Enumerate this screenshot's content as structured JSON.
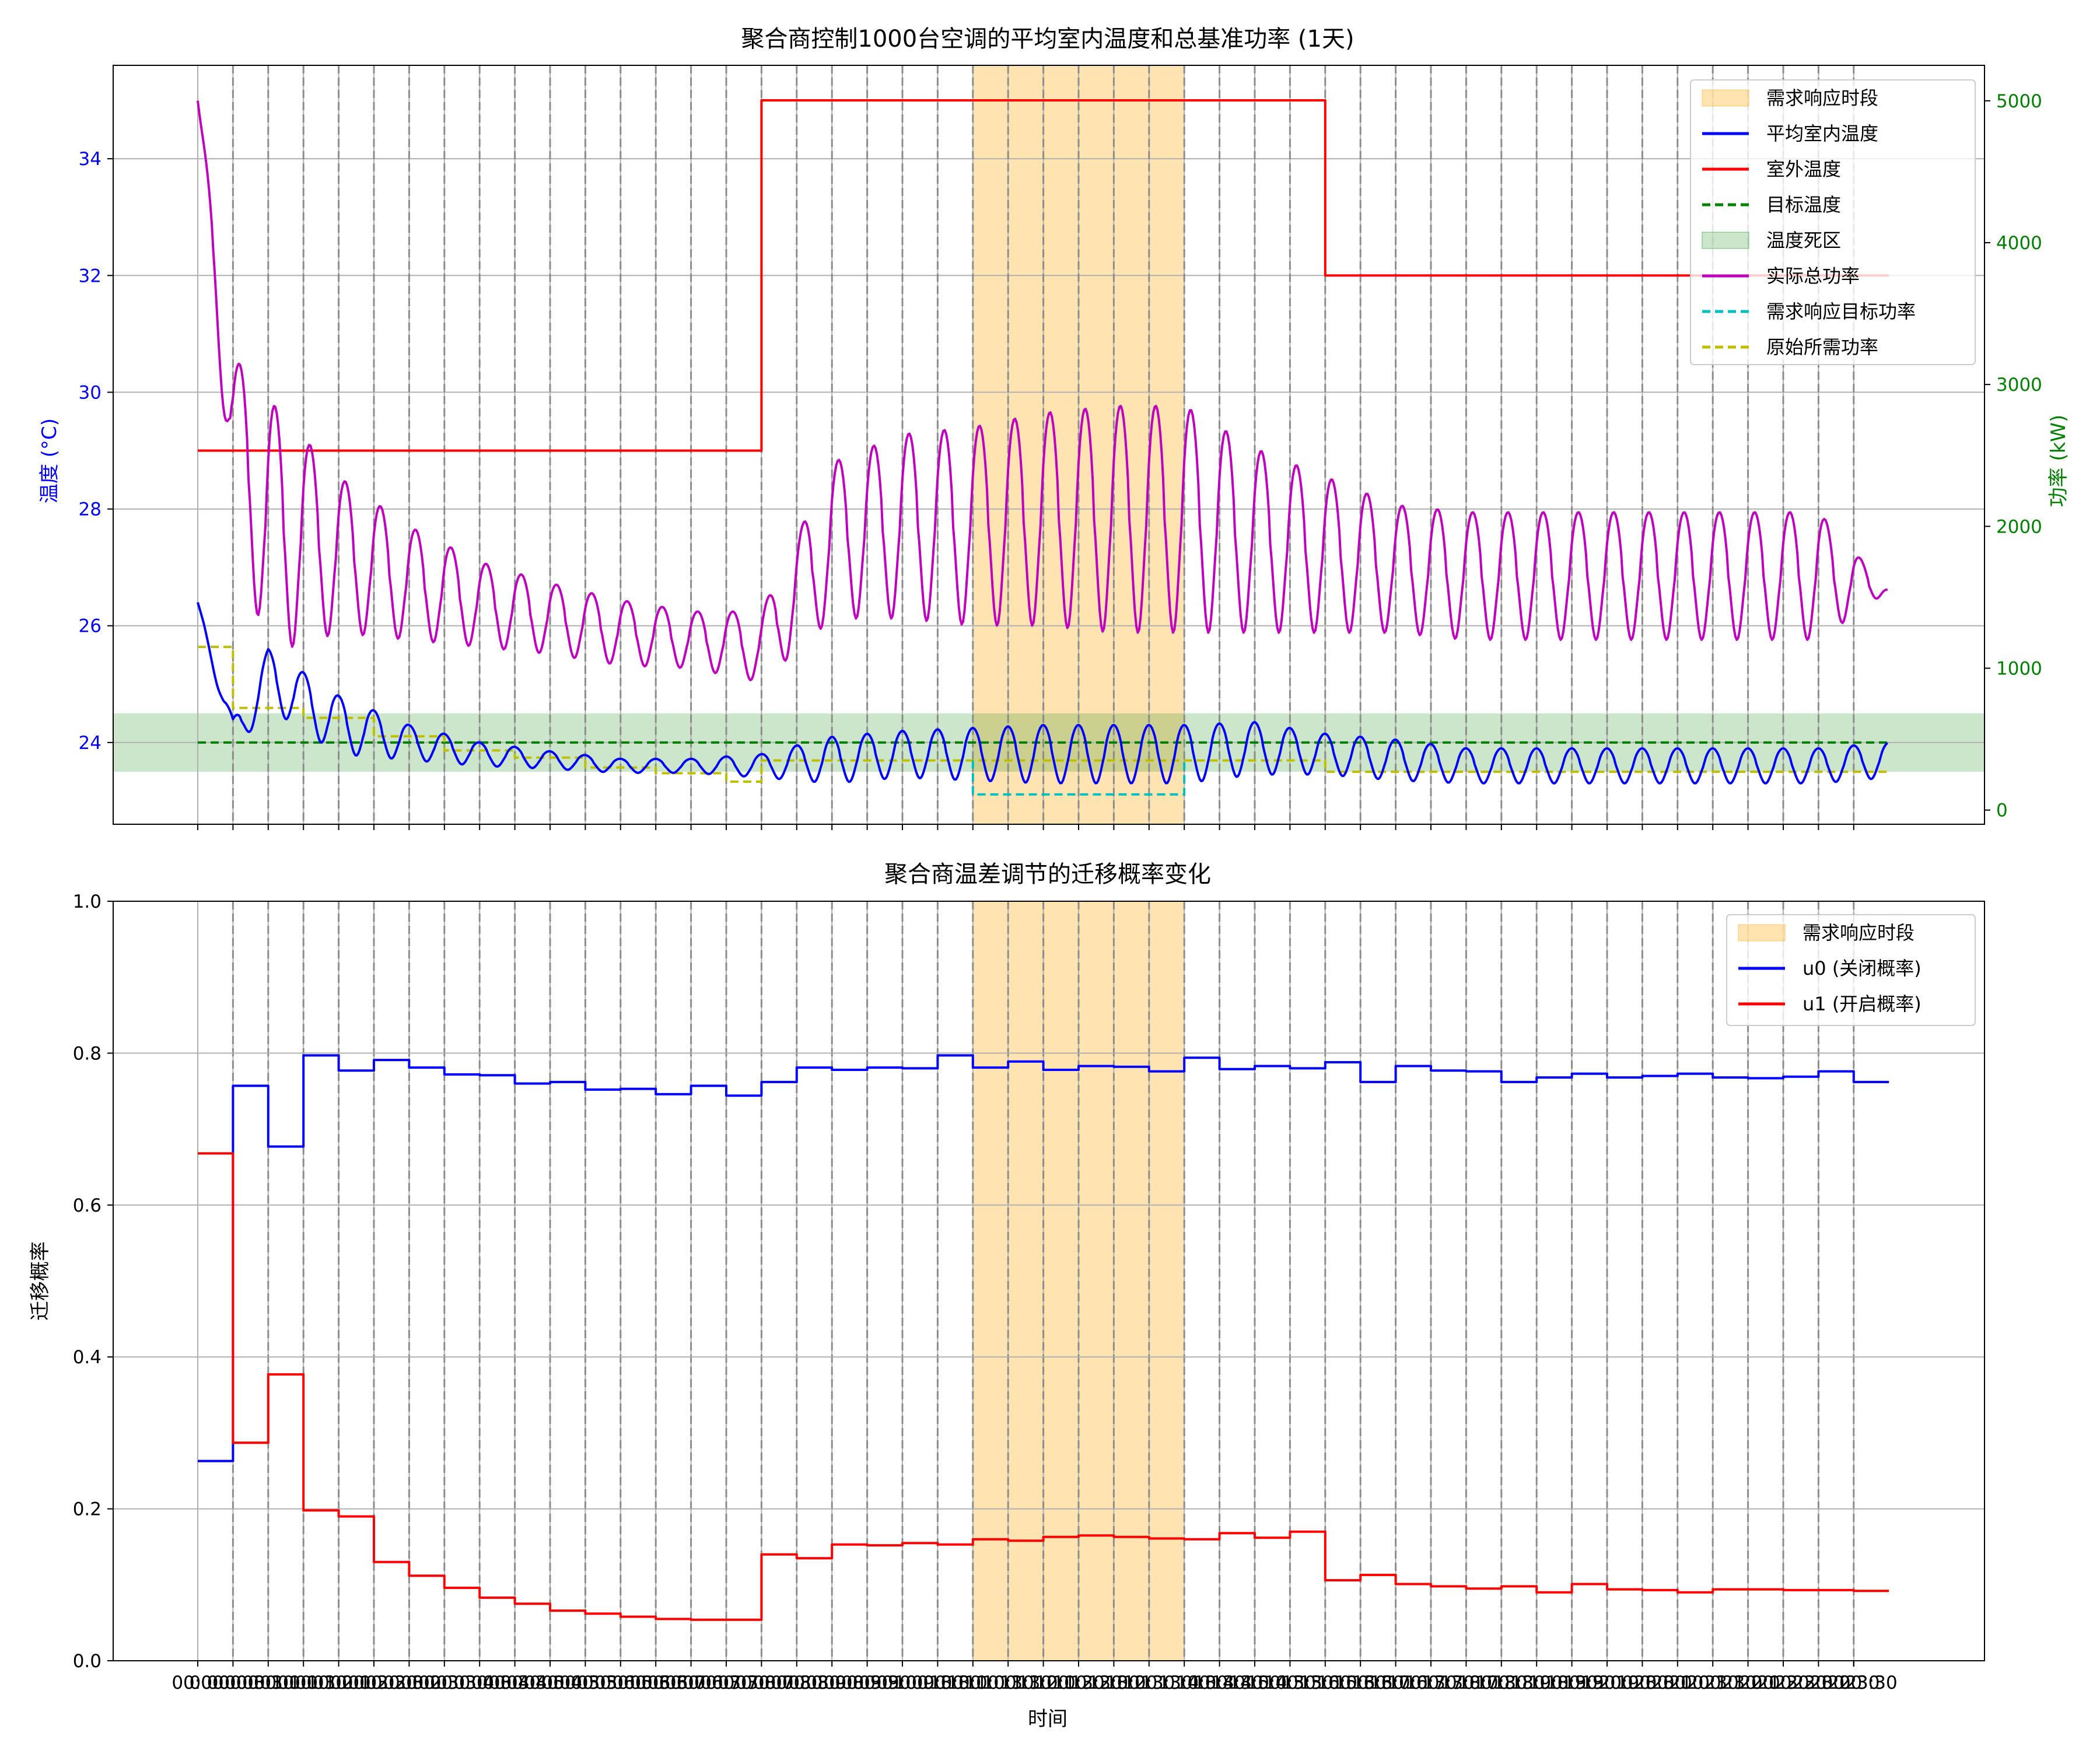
{
  "chart_data": [
    {
      "type": "line",
      "title": "聚合商控制1000台空调的平均室内温度和总基准功率 (1天)",
      "xlabel": "",
      "ylabel": "温度 (°C)",
      "ylabel_right": "功率 (kW)",
      "ylim": [
        22.6,
        35.6
      ],
      "ylim_right": [
        -100,
        5250
      ],
      "yticks": [
        24,
        26,
        28,
        30,
        32,
        34
      ],
      "yticks_right": [
        0,
        1000,
        2000,
        3000,
        4000,
        5000
      ],
      "grid": true,
      "legend_position": "upper right",
      "legend": [
        "需求响应时段",
        "平均室内温度",
        "室外温度",
        "目标温度",
        "温度死区",
        "实际总功率",
        "需求响应目标功率",
        "原始所需功率"
      ],
      "dr_period": [
        11,
        14
      ],
      "deadband": [
        23.5,
        24.5
      ],
      "target_temp": 24,
      "series": [
        {
          "name": "室外温度",
          "axis": "left",
          "color": "#ff0000",
          "style": "solid",
          "x": [
            0,
            8,
            8,
            16,
            16,
            24
          ],
          "y": [
            29,
            29,
            35,
            35,
            32,
            32
          ]
        },
        {
          "name": "平均室内温度",
          "axis": "left",
          "color": "#0000ff",
          "style": "solid",
          "x": [
            0,
            0.5,
            1,
            2,
            3,
            4,
            5,
            6,
            7,
            8,
            9,
            10,
            11,
            12,
            13,
            14,
            15,
            16,
            17,
            18,
            19,
            20,
            21,
            22,
            23,
            24
          ],
          "mean": [
            26.4,
            24.1,
            25.1,
            24.3,
            24.0,
            23.8,
            23.7,
            23.6,
            23.6,
            23.6,
            23.7,
            23.8,
            23.8,
            23.8,
            23.8,
            23.8,
            23.9,
            23.8,
            23.7,
            23.6,
            23.6,
            23.6,
            23.6,
            23.6,
            23.6,
            23.7
          ],
          "amp": [
            0,
            0.3,
            0.5,
            0.5,
            0.3,
            0.2,
            0.15,
            0.12,
            0.12,
            0.2,
            0.4,
            0.4,
            0.45,
            0.5,
            0.5,
            0.5,
            0.45,
            0.35,
            0.35,
            0.3,
            0.3,
            0.3,
            0.3,
            0.3,
            0.3,
            0.3
          ]
        },
        {
          "name": "目标温度",
          "axis": "left",
          "color": "#008000",
          "style": "dashed",
          "x": [
            0,
            24
          ],
          "y": [
            24,
            24
          ]
        },
        {
          "name": "实际总功率",
          "axis": "right",
          "color": "#bf00bf",
          "style": "solid",
          "x": [
            0,
            0.5,
            1,
            2,
            3,
            4,
            5,
            6,
            7,
            8,
            9,
            10,
            11,
            12,
            13,
            14,
            15,
            16,
            17,
            18,
            19,
            20,
            21,
            22,
            23,
            24
          ],
          "mean": [
            5000,
            2600,
            2000,
            1800,
            1600,
            1450,
            1350,
            1250,
            1200,
            1150,
            1900,
            2000,
            2000,
            2050,
            2050,
            2050,
            1900,
            1800,
            1700,
            1650,
            1650,
            1650,
            1650,
            1650,
            1650,
            1550
          ],
          "amp": [
            0,
            600,
            900,
            550,
            400,
            300,
            250,
            230,
            200,
            250,
            550,
            650,
            700,
            750,
            800,
            800,
            650,
            550,
            450,
            450,
            450,
            450,
            450,
            450,
            450,
            0
          ]
        },
        {
          "name": "需求响应目标功率",
          "axis": "right",
          "color": "#00bfbf",
          "style": "dashed",
          "x": [
            11,
            11,
            14,
            14
          ],
          "y": [
            350,
            110,
            110,
            350
          ]
        },
        {
          "name": "原始所需功率",
          "axis": "right",
          "color": "#bfbf00",
          "style": "dashed",
          "x": [
            0,
            0.5,
            0.5,
            1.5,
            1.5,
            2.5,
            2.5,
            3.5,
            3.5,
            4.5,
            4.5,
            5.5,
            5.5,
            6.5,
            6.5,
            7.5,
            7.5,
            8,
            8,
            16,
            16,
            24
          ],
          "y": [
            1150,
            1150,
            720,
            720,
            650,
            650,
            520,
            520,
            420,
            420,
            370,
            370,
            300,
            300,
            260,
            260,
            200,
            200,
            350,
            350,
            270,
            270
          ]
        }
      ]
    },
    {
      "type": "line",
      "title": "聚合商温差调节的迁移概率变化",
      "xlabel": "时间",
      "ylabel": "迁移概率",
      "ylim": [
        0,
        1.0
      ],
      "yticks": [
        0.0,
        0.2,
        0.4,
        0.6,
        0.8,
        1.0
      ],
      "grid": true,
      "legend_position": "upper right",
      "legend": [
        "需求响应时段",
        "u0 (关闭概率)",
        "u1 (开启概率)"
      ],
      "dr_period": [
        11,
        14
      ],
      "categories": [
        "00:00",
        "00:30",
        "01:00",
        "01:30",
        "02:00",
        "02:30",
        "03:00",
        "03:30",
        "04:00",
        "04:30",
        "05:00",
        "05:30",
        "06:00",
        "06:30",
        "07:00",
        "07:30",
        "08:00",
        "08:30",
        "09:00",
        "09:30",
        "10:00",
        "10:30",
        "11:00",
        "11:30",
        "12:00",
        "12:30",
        "13:00",
        "13:30",
        "14:00",
        "14:30",
        "15:00",
        "15:30",
        "16:00",
        "16:30",
        "17:00",
        "17:30",
        "18:00",
        "18:30",
        "19:00",
        "19:30",
        "20:00",
        "20:30",
        "21:00",
        "21:30",
        "22:00",
        "22:30",
        "23:00",
        "23:30"
      ],
      "x_raw_ticks": [
        "00:00",
        "00:00",
        "00:30",
        "01:00",
        "01:00",
        "01:30",
        "02:00",
        "02:30",
        "03:00",
        "03:30",
        "04:00",
        "04:30",
        "05:00",
        "05:30",
        "06:00",
        "06:30",
        "07:00",
        "07:30",
        "08:00",
        "08:30",
        "09:00",
        "09:30",
        "10:00",
        "10:30",
        "11:00",
        "11:30",
        "12:00",
        "12:30",
        "13:00",
        "13:30",
        "14:00",
        "14:30",
        "15:00",
        "15:30",
        "16:00",
        "16:30",
        "17:00",
        "17:30",
        "18:00",
        "18:30",
        "19:00",
        "19:30",
        "20:00",
        "20:30",
        "21:00",
        "21:30",
        "22:00",
        "22:30",
        "23:00",
        "23:30"
      ],
      "series": [
        {
          "name": "u0 (关闭概率)",
          "color": "#0000ff",
          "values": [
            0.263,
            0.757,
            0.677,
            0.797,
            0.777,
            0.791,
            0.781,
            0.772,
            0.771,
            0.76,
            0.762,
            0.752,
            0.753,
            0.746,
            0.757,
            0.744,
            0.762,
            0.781,
            0.778,
            0.781,
            0.78,
            0.797,
            0.781,
            0.789,
            0.778,
            0.783,
            0.782,
            0.776,
            0.794,
            0.779,
            0.783,
            0.78,
            0.788,
            0.762,
            0.783,
            0.777,
            0.776,
            0.762,
            0.768,
            0.773,
            0.768,
            0.77,
            0.773,
            0.768,
            0.767,
            0.769,
            0.776,
            0.762
          ]
        },
        {
          "name": "u1 (开启概率)",
          "color": "#ff0000",
          "values": [
            0.668,
            0.287,
            0.377,
            0.198,
            0.19,
            0.13,
            0.112,
            0.096,
            0.083,
            0.075,
            0.066,
            0.062,
            0.058,
            0.055,
            0.054,
            0.054,
            0.14,
            0.135,
            0.153,
            0.152,
            0.155,
            0.153,
            0.16,
            0.158,
            0.163,
            0.165,
            0.163,
            0.161,
            0.16,
            0.168,
            0.162,
            0.17,
            0.106,
            0.113,
            0.101,
            0.098,
            0.095,
            0.098,
            0.09,
            0.101,
            0.094,
            0.093,
            0.09,
            0.094,
            0.094,
            0.093,
            0.093,
            0.092
          ]
        }
      ]
    }
  ]
}
